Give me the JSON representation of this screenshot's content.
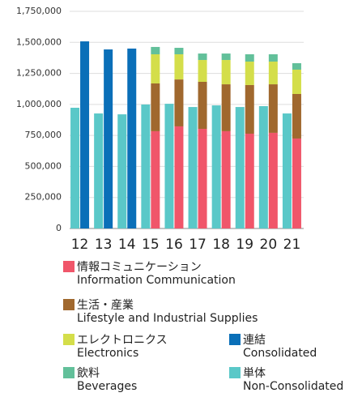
{
  "chart_data": {
    "type": "bar",
    "categories": [
      "12",
      "13",
      "14",
      "15",
      "16",
      "17",
      "18",
      "19",
      "20",
      "21"
    ],
    "series": [
      {
        "name": "情報コミュニケーション",
        "name_en": "Information Communication",
        "color": "#f0566a",
        "values": [
          null,
          null,
          null,
          784000,
          823000,
          803000,
          784000,
          764000,
          771000,
          725000
        ]
      },
      {
        "name": "生活・産業",
        "name_en": "Lifestyle and Industrial Supplies",
        "color": "#a0682e",
        "values": [
          null,
          null,
          null,
          385000,
          378000,
          379000,
          378000,
          392000,
          391000,
          359000
        ]
      },
      {
        "name": "エレクトロニクス",
        "name_en": "Electronics",
        "color": "#d4de4a",
        "values": [
          null,
          null,
          null,
          235000,
          203000,
          176000,
          196000,
          189000,
          183000,
          196000
        ]
      },
      {
        "name": "飲料",
        "name_en": "Beverages",
        "color": "#62c09a",
        "values": [
          null,
          null,
          null,
          59000,
          52000,
          52000,
          52000,
          59000,
          59000,
          52000
        ]
      },
      {
        "name": "連結",
        "name_en": "Consolidated",
        "color": "#0a6fb8",
        "values": [
          1508000,
          1443000,
          1450000,
          null,
          null,
          null,
          null,
          null,
          null,
          null
        ]
      },
      {
        "name": "単体",
        "name_en": "Non-Consolidated",
        "color": "#5ac8c8",
        "values": [
          973000,
          927000,
          920000,
          999000,
          1005000,
          979000,
          992000,
          979000,
          986000,
          927000
        ]
      }
    ],
    "ylim": [
      0,
      1750000
    ],
    "yticks": [
      0,
      {
        "value": 250000,
        "label": "250,000"
      },
      {
        "value": 500000,
        "label": "500,000"
      },
      {
        "value": 750000,
        "label": "750,000"
      },
      {
        "value": 1000000,
        "label": "1,000,000"
      },
      {
        "value": 1250000,
        "label": "1,250,000"
      },
      {
        "value": 1500000,
        "label": "1,500,000"
      },
      {
        "value": 1750000,
        "label": "1,750,000"
      }
    ],
    "grid": true
  }
}
